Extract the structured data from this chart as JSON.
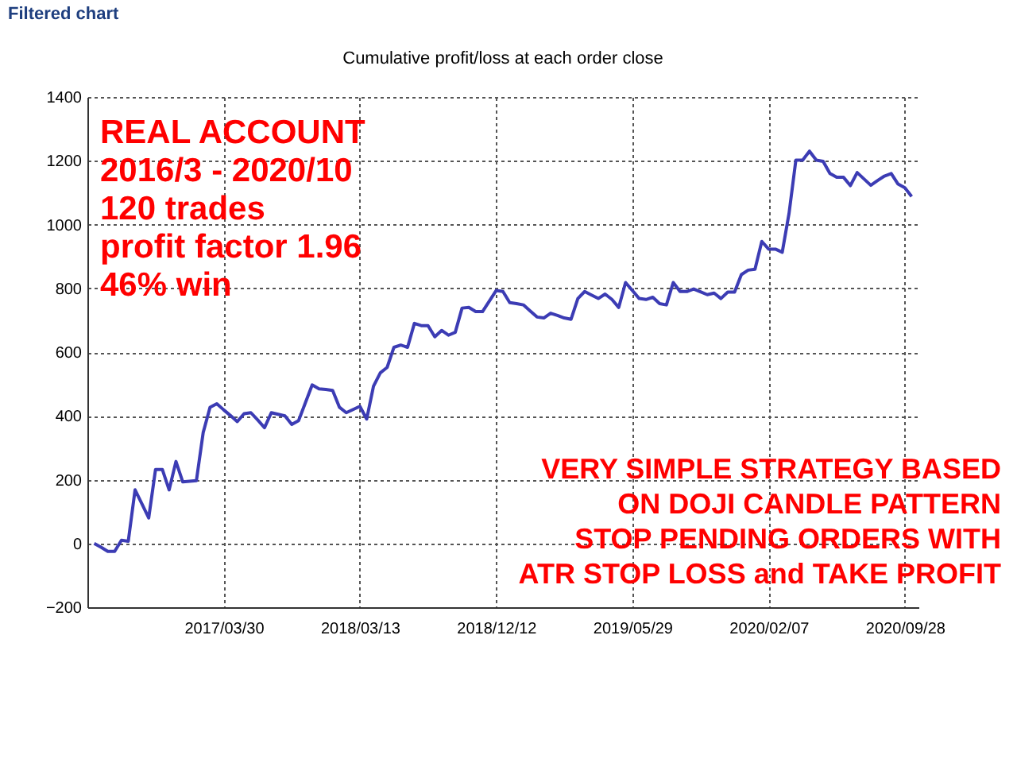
{
  "chart_data": {
    "type": "line",
    "title": "Cumulative profit/loss at each order close",
    "annotations": [
      "Filtered chart",
      "REAL ACCOUNT\n2016/3 - 2020/10\n120 trades\nprofit factor 1.96\n46% win",
      "VERY SIMPLE STRATEGY BASED\nON DOJI CANDLE PATTERN\nSTOP PENDING ORDERS WITH\nATR STOP LOSS and TAKE PROFIT"
    ],
    "categories": [
      null,
      null,
      null,
      null,
      null,
      null,
      null,
      null,
      null,
      null,
      null,
      null,
      null,
      null,
      null,
      null,
      null,
      null,
      null,
      "2017/03/30",
      null,
      null,
      null,
      null,
      null,
      null,
      null,
      null,
      null,
      null,
      null,
      null,
      null,
      null,
      null,
      null,
      null,
      null,
      null,
      "2018/03/13",
      null,
      null,
      null,
      null,
      null,
      null,
      null,
      null,
      null,
      null,
      null,
      null,
      null,
      null,
      null,
      null,
      null,
      null,
      null,
      "2018/12/12",
      null,
      null,
      null,
      null,
      null,
      null,
      null,
      null,
      null,
      null,
      null,
      null,
      null,
      null,
      null,
      null,
      null,
      null,
      null,
      "2019/05/29",
      null,
      null,
      null,
      null,
      null,
      null,
      null,
      null,
      null,
      null,
      null,
      null,
      null,
      null,
      null,
      null,
      null,
      null,
      null,
      "2020/02/07",
      null,
      null,
      null,
      null,
      null,
      null,
      null,
      null,
      null,
      null,
      null,
      null,
      null,
      null,
      null,
      null,
      null,
      null,
      null,
      "2020/09/28",
      null
    ],
    "series": [
      {
        "color": "#3c3cb4",
        "values": [
          0,
          -12,
          -25,
          -25,
          10,
          7,
          168,
          124,
          80,
          232,
          232,
          168,
          257,
          193,
          195,
          197,
          348,
          427,
          438,
          419,
          401,
          382,
          407,
          410,
          387,
          363,
          410,
          405,
          400,
          373,
          385,
          441,
          497,
          485,
          483,
          480,
          427,
          410,
          420,
          430,
          390,
          493,
          535,
          552,
          615,
          622,
          615,
          690,
          683,
          683,
          648,
          668,
          653,
          662,
          738,
          740,
          727,
          727,
          760,
          793,
          790,
          755,
          752,
          748,
          729,
          710,
          707,
          722,
          715,
          707,
          703,
          768,
          790,
          779,
          768,
          782,
          765,
          740,
          818,
          793,
          768,
          765,
          772,
          752,
          748,
          818,
          790,
          790,
          798,
          789,
          780,
          785,
          768,
          788,
          788,
          843,
          857,
          860,
          947,
          923,
          923,
          913,
          1035,
          1202,
          1202,
          1230,
          1202,
          1198,
          1160,
          1148,
          1148,
          1122,
          1163,
          1143,
          1123,
          1138,
          1152,
          1160,
          1127,
          1115,
          1088
        ]
      }
    ],
    "ylim": [
      -200,
      1400
    ],
    "yticks": [
      -200,
      0,
      200,
      400,
      600,
      800,
      1000,
      1200,
      1400
    ],
    "grid": true,
    "line_style": "solid"
  }
}
